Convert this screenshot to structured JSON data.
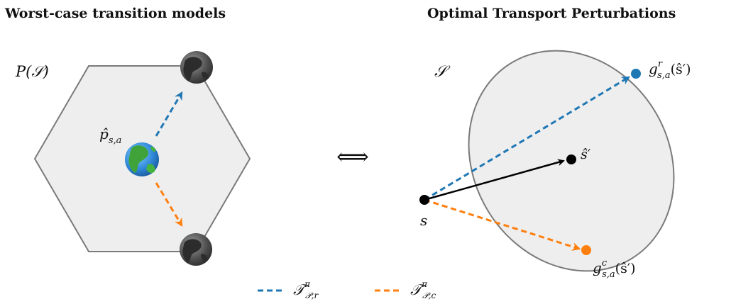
{
  "left": {
    "title": "Worst-case transition models",
    "set_label": "P(𝒮)",
    "center_label_main": "p̂",
    "center_label_sub": "s,a",
    "center_icon": "earth-globe-color-icon",
    "worst_icons": [
      "earth-globe-gray-icon",
      "earth-globe-gray-icon"
    ]
  },
  "right": {
    "title": "Optimal Transport Perturbations",
    "set_label": "𝒮",
    "origin_label": "s",
    "target_label": "ŝ′",
    "reward_point_main": "g",
    "reward_point_sup": "r",
    "reward_point_sub": "s,a",
    "reward_point_arg": "(ŝ′)",
    "cost_point_main": "g",
    "cost_point_sup": "c",
    "cost_point_sub": "s,a",
    "cost_point_arg": "(ŝ′)"
  },
  "equivalence_symbol": "⟺",
  "legend": {
    "items": [
      {
        "main": "𝒯",
        "sup": "π",
        "sub": "𝒫,r",
        "color": "#1f77b4"
      },
      {
        "main": "𝒯",
        "sup": "π",
        "sub": "𝒫,c",
        "color": "#ff7f0e"
      }
    ]
  },
  "colors": {
    "reward": "#1f77b4",
    "cost": "#ff7f0e",
    "region_fill": "#eeeeee",
    "region_stroke": "#7a7a7a"
  }
}
